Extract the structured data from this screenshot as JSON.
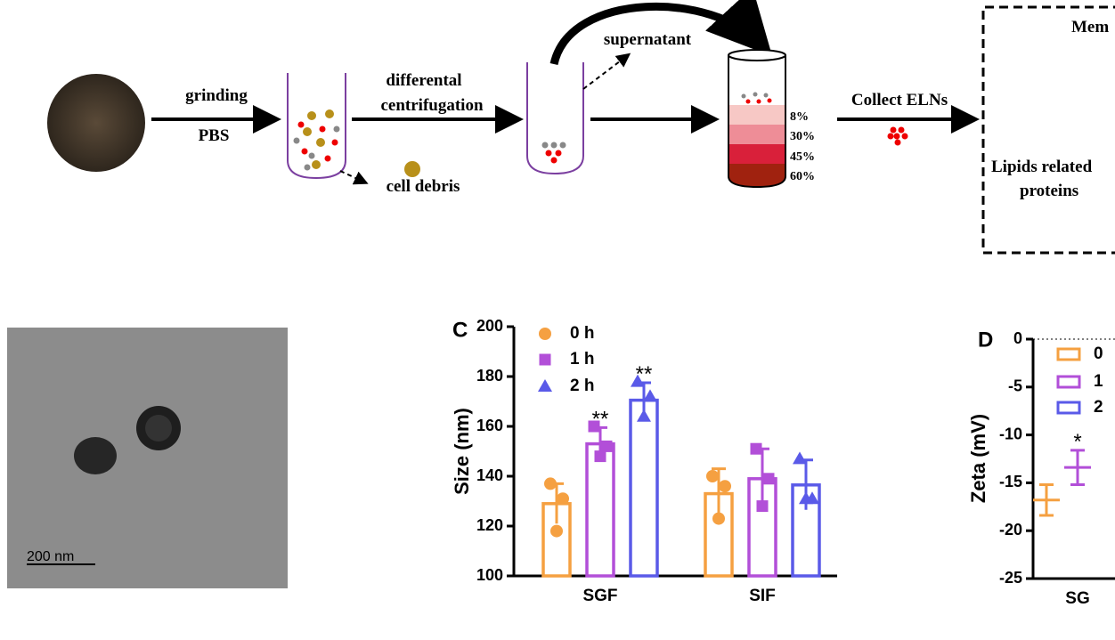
{
  "diagram": {
    "grinding": "grinding",
    "pbs": "PBS",
    "centrifugation_1": "differental",
    "centrifugation_2": "centrifugation",
    "cell_debris": "cell debris",
    "supernatant": "supernatant",
    "layer_1": "8%",
    "layer_2": "30%",
    "layer_3": "45%",
    "layer_4": "60%",
    "collect": "Collect ELNs",
    "box_title": "Mem",
    "box_label_1": "Lipids related",
    "box_label_2": "proteins"
  },
  "image": {
    "scale_bar": "200 nm"
  },
  "chart_data": [
    {
      "type": "bar",
      "panel": "C",
      "ylabel": "Size (nm)",
      "categories": [
        "SGF",
        "SIF"
      ],
      "ylim": [
        100,
        200
      ],
      "yticks": [
        100,
        120,
        140,
        160,
        180,
        200
      ],
      "series": [
        {
          "name": "0 h",
          "color": "#f5a041",
          "marker": "circle",
          "values": [
            129,
            133
          ],
          "errors": [
            8,
            10
          ],
          "points": [
            [
              137,
              131,
              118
            ],
            [
              140,
              136,
              123
            ]
          ],
          "sig": [
            null,
            null
          ]
        },
        {
          "name": "1 h",
          "color": "#b24fd8",
          "marker": "square",
          "values": [
            153,
            139
          ],
          "errors": [
            6.5,
            12
          ],
          "points": [
            [
              160,
              152,
              148
            ],
            [
              151,
              139,
              128
            ]
          ],
          "sig": [
            "**",
            null
          ]
        },
        {
          "name": "2 h",
          "color": "#5a5ae8",
          "marker": "triangle",
          "values": [
            170.5,
            136.5
          ],
          "errors": [
            7,
            10
          ],
          "points": [
            [
              178,
              172,
              164
            ],
            [
              147,
              131,
              131
            ]
          ],
          "sig": [
            "**",
            null
          ]
        }
      ]
    },
    {
      "type": "errorbar",
      "panel": "D",
      "ylabel": "Zeta (mV)",
      "categories": [
        "SG"
      ],
      "ylim": [
        -25,
        0
      ],
      "yticks": [
        0,
        -5,
        -10,
        -15,
        -20,
        -25
      ],
      "zero_line": true,
      "series": [
        {
          "name": "0",
          "color": "#f5a041",
          "values": [
            -16.8
          ],
          "errors": [
            1.6
          ],
          "sig": [
            null
          ]
        },
        {
          "name": "1",
          "color": "#b24fd8",
          "values": [
            -13.4
          ],
          "errors": [
            1.8
          ],
          "sig": [
            "*"
          ]
        },
        {
          "name": "2",
          "color": "#5a5ae8",
          "values": [
            null
          ],
          "errors": [
            null
          ],
          "sig": [
            null
          ]
        }
      ]
    }
  ]
}
